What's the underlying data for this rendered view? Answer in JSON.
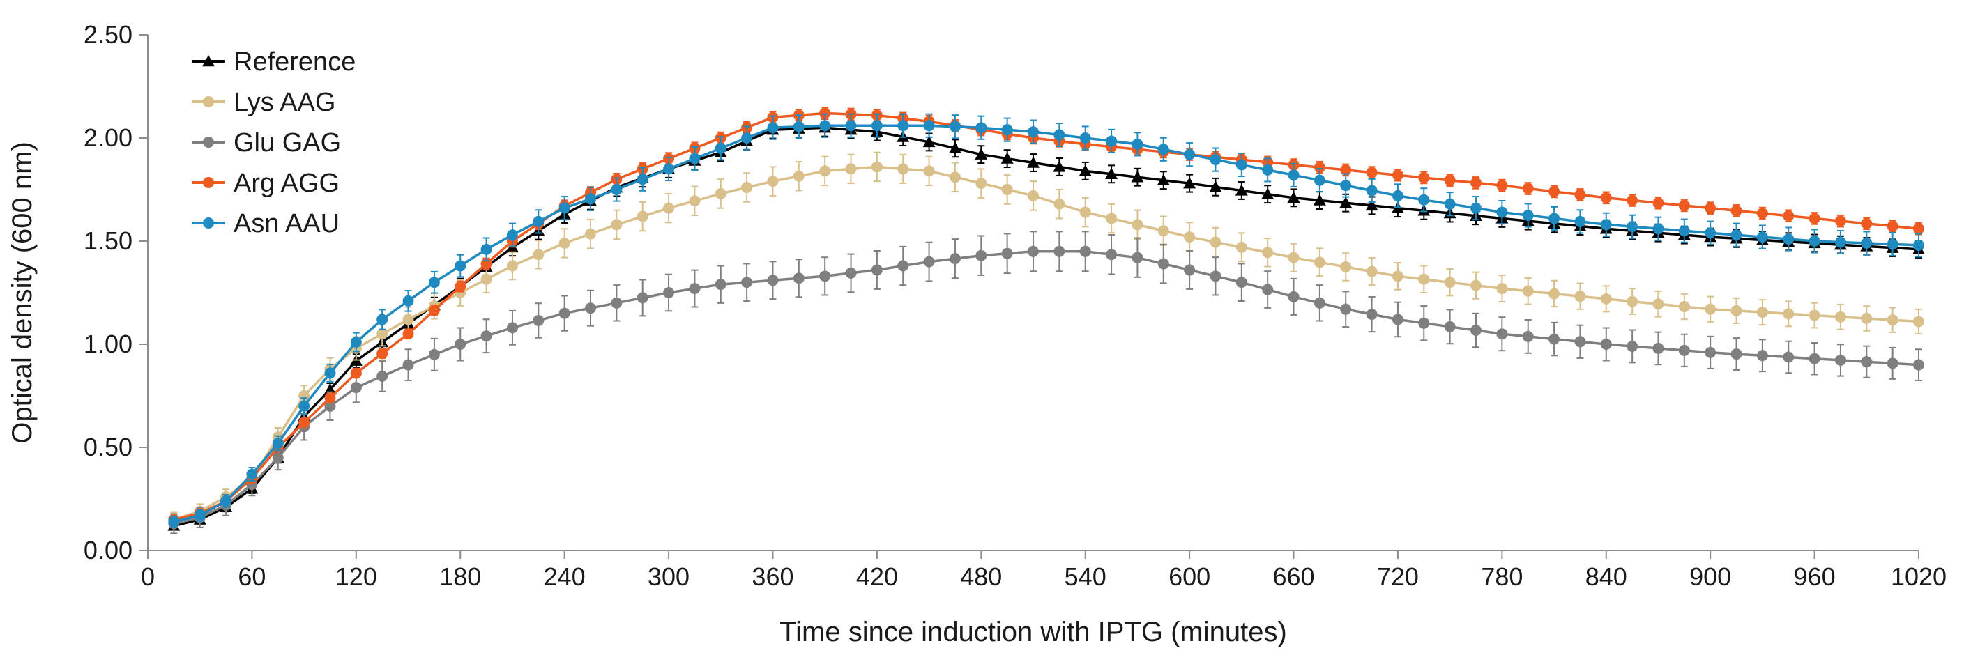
{
  "chart_data": {
    "type": "line",
    "title": "",
    "xlabel": "Time since induction with IPTG (minutes)",
    "ylabel": "Optical density (600 nm)",
    "xlim": [
      0,
      1020
    ],
    "ylim": [
      0,
      2.5
    ],
    "xticks": [
      0,
      60,
      120,
      180,
      240,
      300,
      360,
      420,
      480,
      540,
      600,
      660,
      720,
      780,
      840,
      900,
      960,
      1020
    ],
    "xtick_labels": [
      "0",
      "60",
      "120",
      "180",
      "240",
      "300",
      "360",
      "420",
      "480",
      "540",
      "600",
      "660",
      "720",
      "780",
      "840",
      "900",
      "960",
      "1020"
    ],
    "yticks": [
      0,
      0.5,
      1.0,
      1.5,
      2.0,
      2.5
    ],
    "ytick_labels": [
      "0.00",
      "0.50",
      "1.00",
      "1.50",
      "2.00",
      "2.50"
    ],
    "legend_position": "top-left",
    "grid": false,
    "error_bars": true,
    "x_interval_minutes": 15,
    "series": [
      {
        "name": "Reference",
        "color": "#000000",
        "marker": "triangle",
        "anchors": [
          [
            15,
            0.12
          ],
          [
            30,
            0.15
          ],
          [
            45,
            0.21
          ],
          [
            60,
            0.3
          ],
          [
            75,
            0.45
          ],
          [
            90,
            0.65
          ],
          [
            105,
            0.78
          ],
          [
            120,
            0.92
          ],
          [
            150,
            1.1
          ],
          [
            180,
            1.28
          ],
          [
            210,
            1.47
          ],
          [
            240,
            1.63
          ],
          [
            270,
            1.76
          ],
          [
            300,
            1.85
          ],
          [
            330,
            1.93
          ],
          [
            360,
            2.04
          ],
          [
            390,
            2.05
          ],
          [
            420,
            2.03
          ],
          [
            450,
            1.98
          ],
          [
            480,
            1.92
          ],
          [
            510,
            1.88
          ],
          [
            540,
            1.84
          ],
          [
            600,
            1.78
          ],
          [
            660,
            1.71
          ],
          [
            720,
            1.66
          ],
          [
            780,
            1.61
          ],
          [
            840,
            1.56
          ],
          [
            900,
            1.52
          ],
          [
            960,
            1.49
          ],
          [
            1020,
            1.46
          ]
        ],
        "errors": 0.03
      },
      {
        "name": "Lys AAG",
        "color": "#d9bf8a",
        "marker": "circle",
        "anchors": [
          [
            15,
            0.15
          ],
          [
            30,
            0.19
          ],
          [
            45,
            0.26
          ],
          [
            60,
            0.35
          ],
          [
            75,
            0.55
          ],
          [
            90,
            0.75
          ],
          [
            105,
            0.88
          ],
          [
            120,
            0.98
          ],
          [
            150,
            1.12
          ],
          [
            180,
            1.25
          ],
          [
            210,
            1.38
          ],
          [
            240,
            1.49
          ],
          [
            270,
            1.58
          ],
          [
            300,
            1.66
          ],
          [
            330,
            1.73
          ],
          [
            360,
            1.79
          ],
          [
            390,
            1.84
          ],
          [
            420,
            1.86
          ],
          [
            450,
            1.84
          ],
          [
            480,
            1.78
          ],
          [
            510,
            1.72
          ],
          [
            540,
            1.64
          ],
          [
            570,
            1.58
          ],
          [
            600,
            1.52
          ],
          [
            660,
            1.42
          ],
          [
            720,
            1.33
          ],
          [
            780,
            1.27
          ],
          [
            840,
            1.22
          ],
          [
            900,
            1.17
          ],
          [
            960,
            1.14
          ],
          [
            1020,
            1.11
          ]
        ],
        "errors": 0.05
      },
      {
        "name": "Glu GAG",
        "color": "#7f7f7f",
        "marker": "circle",
        "anchors": [
          [
            15,
            0.13
          ],
          [
            30,
            0.16
          ],
          [
            45,
            0.22
          ],
          [
            60,
            0.32
          ],
          [
            75,
            0.45
          ],
          [
            90,
            0.6
          ],
          [
            105,
            0.7
          ],
          [
            120,
            0.79
          ],
          [
            150,
            0.9
          ],
          [
            180,
            1.0
          ],
          [
            210,
            1.08
          ],
          [
            240,
            1.15
          ],
          [
            270,
            1.2
          ],
          [
            300,
            1.25
          ],
          [
            330,
            1.29
          ],
          [
            360,
            1.31
          ],
          [
            390,
            1.33
          ],
          [
            420,
            1.36
          ],
          [
            450,
            1.4
          ],
          [
            480,
            1.43
          ],
          [
            510,
            1.45
          ],
          [
            540,
            1.45
          ],
          [
            570,
            1.42
          ],
          [
            600,
            1.36
          ],
          [
            630,
            1.3
          ],
          [
            660,
            1.23
          ],
          [
            690,
            1.17
          ],
          [
            720,
            1.12
          ],
          [
            780,
            1.05
          ],
          [
            840,
            1.0
          ],
          [
            900,
            0.96
          ],
          [
            960,
            0.93
          ],
          [
            1020,
            0.9
          ]
        ],
        "errors": 0.07
      },
      {
        "name": "Arg AGG",
        "color": "#ee5a1f",
        "marker": "circle",
        "anchors": [
          [
            15,
            0.15
          ],
          [
            30,
            0.18
          ],
          [
            45,
            0.24
          ],
          [
            60,
            0.35
          ],
          [
            75,
            0.5
          ],
          [
            90,
            0.62
          ],
          [
            105,
            0.74
          ],
          [
            120,
            0.86
          ],
          [
            150,
            1.05
          ],
          [
            180,
            1.28
          ],
          [
            210,
            1.5
          ],
          [
            240,
            1.67
          ],
          [
            270,
            1.8
          ],
          [
            300,
            1.9
          ],
          [
            330,
            2.0
          ],
          [
            360,
            2.1
          ],
          [
            390,
            2.12
          ],
          [
            420,
            2.11
          ],
          [
            450,
            2.08
          ],
          [
            480,
            2.04
          ],
          [
            510,
            2.0
          ],
          [
            540,
            1.97
          ],
          [
            600,
            1.92
          ],
          [
            660,
            1.87
          ],
          [
            720,
            1.82
          ],
          [
            780,
            1.77
          ],
          [
            840,
            1.71
          ],
          [
            900,
            1.66
          ],
          [
            960,
            1.61
          ],
          [
            1020,
            1.56
          ]
        ],
        "errors": 0.02
      },
      {
        "name": "Asn AAU",
        "color": "#1f8ac0",
        "marker": "circle",
        "anchors": [
          [
            15,
            0.14
          ],
          [
            30,
            0.17
          ],
          [
            45,
            0.24
          ],
          [
            60,
            0.37
          ],
          [
            75,
            0.52
          ],
          [
            90,
            0.7
          ],
          [
            105,
            0.86
          ],
          [
            120,
            1.01
          ],
          [
            135,
            1.12
          ],
          [
            150,
            1.21
          ],
          [
            165,
            1.3
          ],
          [
            180,
            1.38
          ],
          [
            195,
            1.46
          ],
          [
            210,
            1.53
          ],
          [
            240,
            1.66
          ],
          [
            270,
            1.75
          ],
          [
            300,
            1.85
          ],
          [
            330,
            1.95
          ],
          [
            360,
            2.05
          ],
          [
            390,
            2.06
          ],
          [
            420,
            2.06
          ],
          [
            450,
            2.06
          ],
          [
            480,
            2.05
          ],
          [
            510,
            2.03
          ],
          [
            540,
            2.0
          ],
          [
            570,
            1.97
          ],
          [
            600,
            1.92
          ],
          [
            660,
            1.82
          ],
          [
            720,
            1.72
          ],
          [
            780,
            1.64
          ],
          [
            840,
            1.58
          ],
          [
            900,
            1.54
          ],
          [
            960,
            1.5
          ],
          [
            1020,
            1.48
          ]
        ],
        "errors": 0.04
      }
    ]
  }
}
